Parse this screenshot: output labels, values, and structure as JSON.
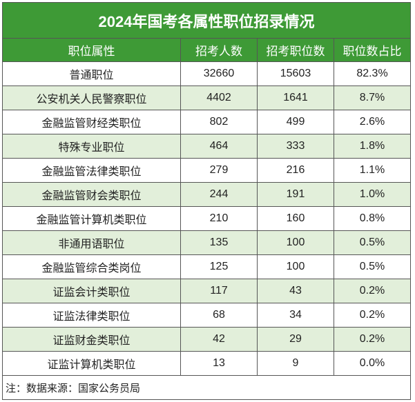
{
  "title": "2024年国考各属性职位招录情况",
  "columns": [
    "职位属性",
    "招考人数",
    "招考职位数",
    "职位数占比"
  ],
  "rows": [
    [
      "普通职位",
      "32660",
      "15603",
      "82.3%"
    ],
    [
      "公安机关人民警察职位",
      "4402",
      "1641",
      "8.7%"
    ],
    [
      "金融监管财经类职位",
      "802",
      "499",
      "2.6%"
    ],
    [
      "特殊专业职位",
      "464",
      "333",
      "1.8%"
    ],
    [
      "金融监管法律类职位",
      "279",
      "216",
      "1.1%"
    ],
    [
      "金融监管财会类职位",
      "244",
      "191",
      "1.0%"
    ],
    [
      "金融监管计算机类职位",
      "210",
      "160",
      "0.8%"
    ],
    [
      "非通用语职位",
      "135",
      "100",
      "0.5%"
    ],
    [
      "金融监管综合类岗位",
      "125",
      "100",
      "0.5%"
    ],
    [
      "证监会计类职位",
      "117",
      "43",
      "0.2%"
    ],
    [
      "证监法律类职位",
      "68",
      "34",
      "0.2%"
    ],
    [
      "证监财金类职位",
      "42",
      "29",
      "0.2%"
    ],
    [
      "证监计算机类职位",
      "13",
      "9",
      "0.0%"
    ]
  ],
  "note": "注：数据来源：国家公务员局",
  "colors": {
    "header_green": "#3e9a36",
    "alt_row": "#e2efda"
  }
}
